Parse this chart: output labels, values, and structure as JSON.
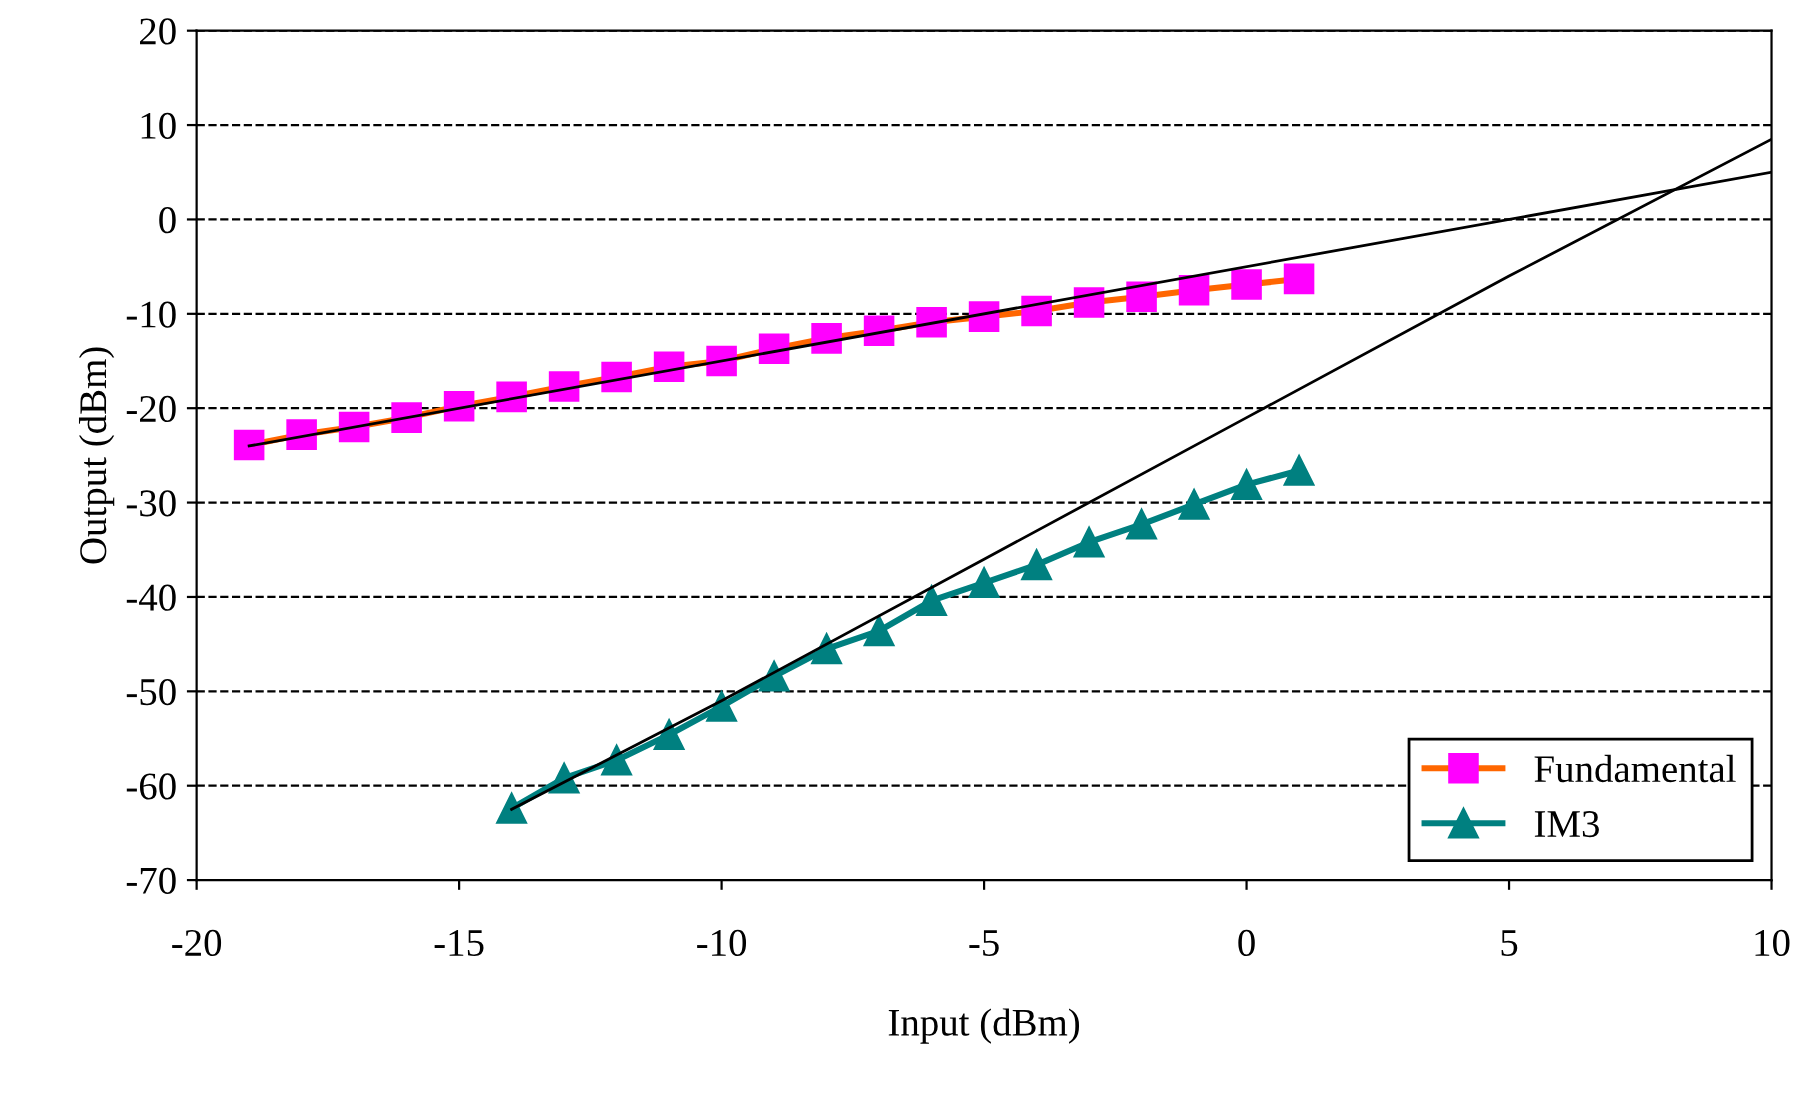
{
  "chart_data": {
    "type": "line",
    "xlabel": "Input (dBm)",
    "ylabel": "Output (dBm)",
    "xlim": [
      -20,
      10
    ],
    "xticks": [
      -20,
      -15,
      -10,
      -5,
      0,
      5,
      10
    ],
    "ylim": [
      -70,
      20
    ],
    "yticks": [
      -70,
      -60,
      -50,
      -40,
      -30,
      -20,
      -10,
      0,
      10,
      20
    ],
    "grid": "y",
    "legend": "bottom right",
    "series": [
      {
        "name": "Fundamental",
        "color": "#ff6600",
        "colors": [
          "#ff00ff",
          "#ff00ff",
          "#ff00ff",
          "#ff00ff",
          "#ff00ff",
          "#ff00ff",
          "#ff00ff",
          "#ff00ff",
          "#ff00ff",
          "#ff00ff",
          "#ff00ff",
          "#ff00ff",
          "#ff00ff",
          "#ff00ff",
          "#ff00ff",
          "#ff00ff",
          "#ff00ff",
          "#ff00ff",
          "#ff00ff",
          "#ff00ff",
          "#ff00ff"
        ],
        "marker": "square",
        "x": [
          -19,
          -18,
          -17,
          -16,
          -15,
          -14,
          -13,
          -12,
          -11,
          -10,
          -9,
          -8,
          -7,
          -6,
          -5,
          -4,
          -3,
          -2,
          -1,
          0,
          1
        ],
        "values": [
          -23.9,
          -22.8,
          -22,
          -21,
          -19.8,
          -18.8,
          -17.7,
          -16.7,
          -15.6,
          -15,
          -13.7,
          -12.6,
          -11.8,
          -10.9,
          -10.3,
          -9.7,
          -8.8,
          -8.2,
          -7.5,
          -6.9,
          -6.3
        ]
      },
      {
        "name": "IM3",
        "color": "#008080",
        "marker": "triangle",
        "x": [
          -14,
          -13,
          -12,
          -11,
          -10,
          -9,
          -8,
          -7,
          -6,
          -5,
          -4,
          -3,
          -2,
          -1,
          0,
          1
        ],
        "values": [
          -62.4,
          -59.2,
          -57.3,
          -54.6,
          -51.6,
          -48.4,
          -45.5,
          -43.6,
          -40.4,
          -38.5,
          -36.6,
          -34.2,
          -32.3,
          -30.2,
          -28.1,
          -26.6
        ]
      },
      {
        "color": "#000000",
        "marker": "none",
        "x": [
          -19,
          10
        ],
        "values": [
          -24,
          5
        ]
      },
      {
        "color": "#000000",
        "marker": "none",
        "x": [
          -14,
          -10,
          -5,
          0,
          5,
          10
        ],
        "values": [
          -62.5,
          -51,
          -36,
          -21,
          -6,
          8.5
        ]
      }
    ]
  }
}
